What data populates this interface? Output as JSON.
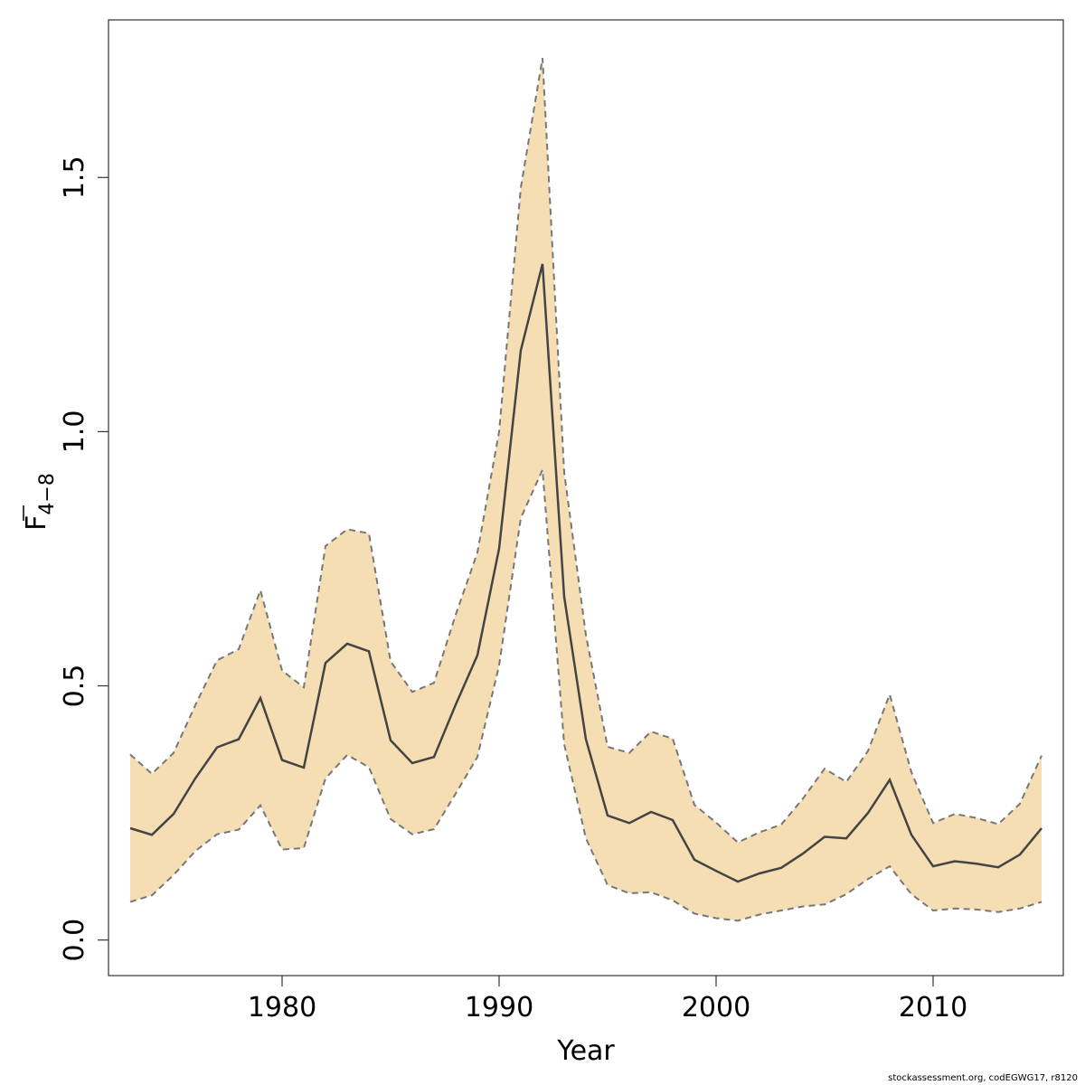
{
  "chart_data": {
    "type": "area",
    "xlabel": "Year",
    "ylabel_main": "F",
    "ylabel_subscript": "4−8",
    "xlim": [
      1972,
      2016
    ],
    "ylim": [
      -0.07,
      1.81
    ],
    "x_ticks": [
      1980,
      1990,
      2000,
      2010
    ],
    "y_ticks": [
      0.0,
      0.5,
      1.0,
      1.5
    ],
    "y_tick_labels": [
      "0.0",
      "0.5",
      "1.0",
      "1.5"
    ],
    "band_fill_color": "#F5DEB3",
    "band_edge_color": "#777777",
    "line_color": "#444444",
    "grid": false,
    "years": [
      1973,
      1974,
      1975,
      1976,
      1977,
      1978,
      1979,
      1980,
      1981,
      1982,
      1983,
      1984,
      1985,
      1986,
      1987,
      1988,
      1989,
      1990,
      1991,
      1992,
      1993,
      1994,
      1995,
      1996,
      1997,
      1998,
      1999,
      2000,
      2001,
      2002,
      2003,
      2004,
      2005,
      2006,
      2007,
      2008,
      2009,
      2010,
      2011,
      2012,
      2013,
      2014,
      2015
    ],
    "series": [
      {
        "role": "estimate",
        "values": [
          0.22,
          0.207,
          0.248,
          0.318,
          0.379,
          0.395,
          0.476,
          0.354,
          0.339,
          0.545,
          0.583,
          0.568,
          0.393,
          0.348,
          0.36,
          0.463,
          0.56,
          0.77,
          1.16,
          1.33,
          0.675,
          0.395,
          0.245,
          0.23,
          0.252,
          0.236,
          0.158,
          0.136,
          0.115,
          0.131,
          0.142,
          0.17,
          0.203,
          0.2,
          0.25,
          0.315,
          0.207,
          0.145,
          0.155,
          0.15,
          0.143,
          0.168,
          0.22
        ]
      },
      {
        "role": "upper",
        "values": [
          0.365,
          0.327,
          0.368,
          0.462,
          0.55,
          0.572,
          0.688,
          0.53,
          0.497,
          0.775,
          0.808,
          0.8,
          0.548,
          0.488,
          0.506,
          0.64,
          0.762,
          1.0,
          1.48,
          1.735,
          0.92,
          0.6,
          0.38,
          0.368,
          0.41,
          0.396,
          0.266,
          0.231,
          0.192,
          0.212,
          0.227,
          0.278,
          0.337,
          0.311,
          0.372,
          0.483,
          0.33,
          0.23,
          0.248,
          0.24,
          0.228,
          0.268,
          0.363
        ]
      },
      {
        "role": "lower",
        "values": [
          0.075,
          0.088,
          0.128,
          0.175,
          0.208,
          0.217,
          0.265,
          0.178,
          0.181,
          0.318,
          0.364,
          0.34,
          0.238,
          0.208,
          0.218,
          0.288,
          0.36,
          0.54,
          0.83,
          0.925,
          0.385,
          0.2,
          0.108,
          0.092,
          0.094,
          0.078,
          0.052,
          0.043,
          0.038,
          0.05,
          0.058,
          0.066,
          0.07,
          0.09,
          0.12,
          0.145,
          0.09,
          0.058,
          0.062,
          0.06,
          0.055,
          0.062,
          0.075
        ]
      }
    ]
  },
  "credit": "stockassessment.org, codEGWG17, r8120"
}
